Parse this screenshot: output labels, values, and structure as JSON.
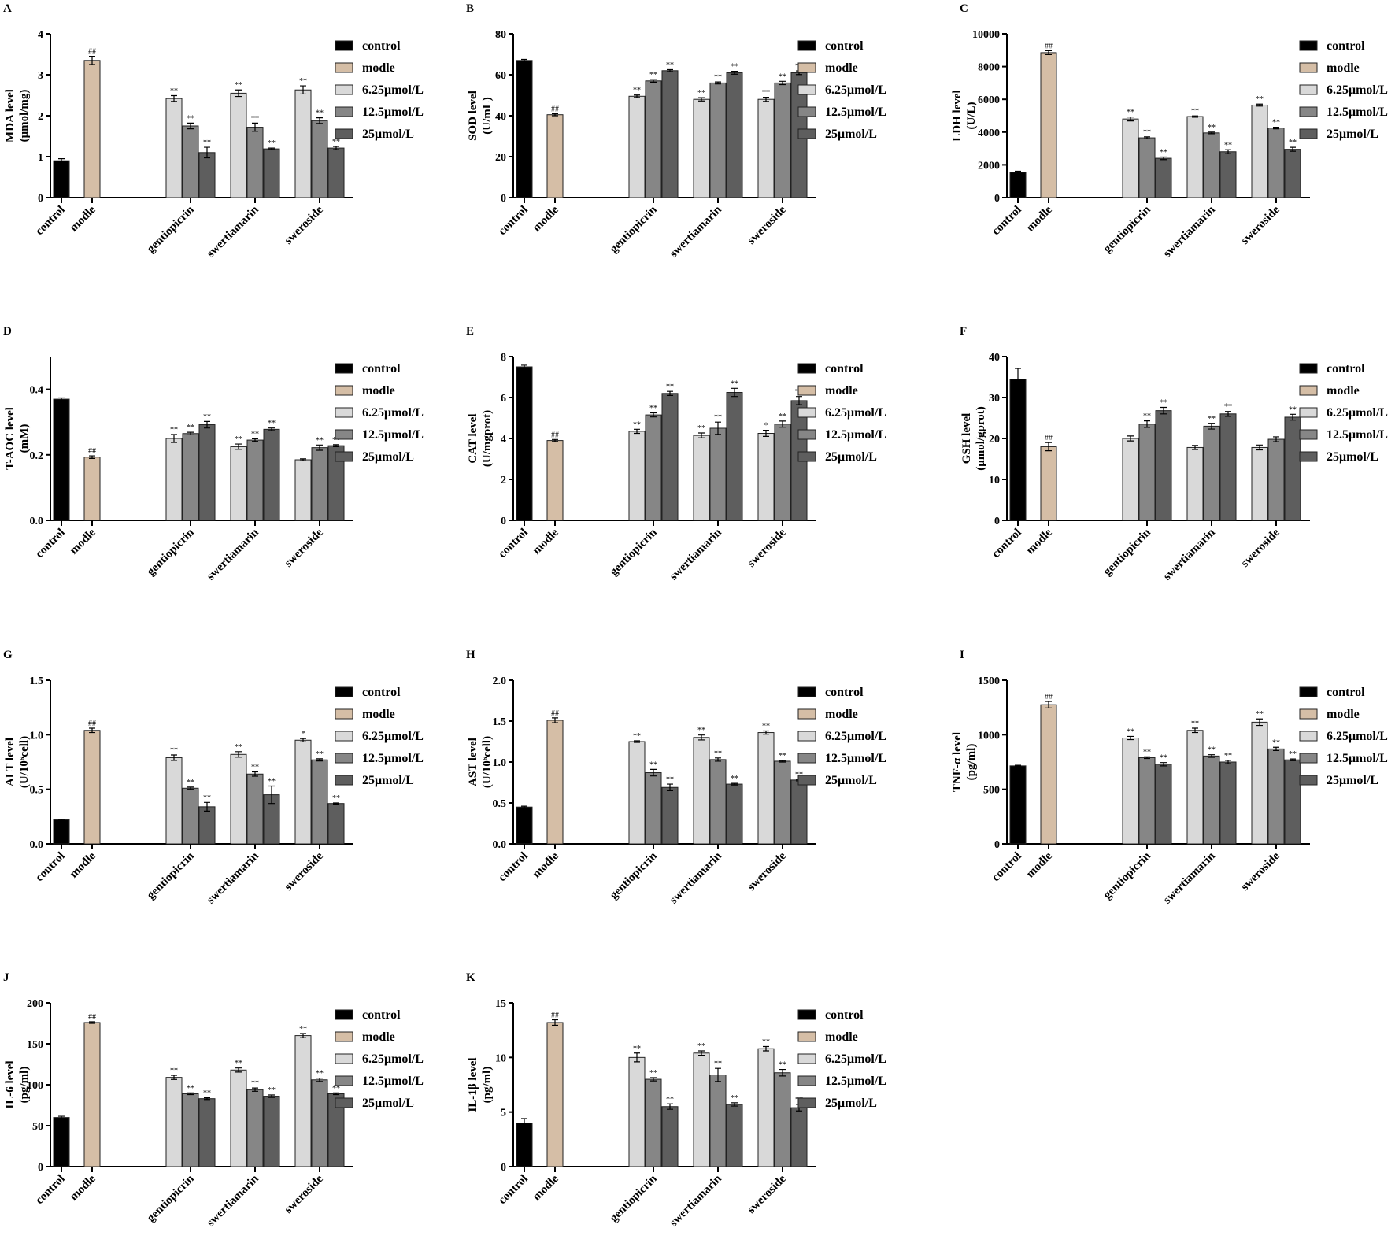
{
  "chart_data": {
    "type": "bar",
    "categories": [
      "control",
      "modle",
      "gentiopicrin",
      "swertiamarin",
      "sweroside"
    ],
    "legend": [
      "control",
      "modle",
      "6.25μmol/L",
      "12.5μmol/L",
      "25μmol/L"
    ],
    "colors": {
      "control": "#000000",
      "modle": "#d5bea6",
      "6.25μmol/L": "#d9d9d9",
      "12.5μmol/L": "#868686",
      "25μmol/L": "#5e5e5e"
    },
    "series_order": [
      "control",
      "modle",
      "gentiopicrin 6.25",
      "gentiopicrin 12.5",
      "gentiopicrin 25",
      "swertiamarin 6.25",
      "swertiamarin 12.5",
      "swertiamarin 25",
      "sweroside 6.25",
      "sweroside 12.5",
      "sweroside 25"
    ],
    "panels": [
      {
        "letter": "A",
        "ylabel": [
          "MDA level",
          "(μmol/mg)"
        ],
        "ylim": [
          0,
          4
        ],
        "yticks": [
          "0",
          "1",
          "2",
          "3",
          "4"
        ],
        "values": [
          0.9,
          3.35,
          2.42,
          1.75,
          1.1,
          2.55,
          1.72,
          1.19,
          2.63,
          1.88,
          1.21
        ],
        "errors": [
          0.05,
          0.1,
          0.07,
          0.07,
          0.13,
          0.08,
          0.1,
          0.02,
          0.1,
          0.07,
          0.04
        ],
        "marks": [
          "",
          "##",
          "**",
          "**",
          "**",
          "**",
          "**",
          "**",
          "**",
          "**",
          "**"
        ]
      },
      {
        "letter": "B",
        "ylabel": [
          "SOD level",
          "(U/mL)"
        ],
        "ylim": [
          0,
          80
        ],
        "yticks": [
          "0",
          "20",
          "40",
          "60",
          "80"
        ],
        "values": [
          67,
          40.5,
          49.5,
          57,
          62,
          48,
          56,
          61,
          48,
          56,
          61
        ],
        "errors": [
          0.5,
          0.5,
          0.6,
          0.6,
          0.5,
          0.8,
          0.5,
          0.7,
          1,
          0.8,
          0.9
        ],
        "marks": [
          "",
          "##",
          "**",
          "**",
          "**",
          "**",
          "**",
          "**",
          "**",
          "**",
          "**"
        ]
      },
      {
        "letter": "C",
        "ylabel": [
          "LDH level",
          "(U/L)"
        ],
        "ylim": [
          0,
          10000
        ],
        "yticks": [
          "0",
          "2000",
          "4000",
          "6000",
          "8000",
          "10000"
        ],
        "values": [
          1550,
          8850,
          4800,
          3650,
          2400,
          4950,
          3950,
          2800,
          5650,
          4250,
          2950
        ],
        "errors": [
          60,
          120,
          120,
          60,
          80,
          40,
          50,
          120,
          60,
          50,
          120
        ],
        "marks": [
          "",
          "##",
          "**",
          "**",
          "**",
          "**",
          "**",
          "**",
          "**",
          "**",
          "**"
        ]
      },
      {
        "letter": "D",
        "ylabel": [
          "T-AOC level",
          "(mM)"
        ],
        "ylim": [
          0,
          0.5
        ],
        "yticks": [
          "0.0",
          "0.2",
          "0.4"
        ],
        "ytickvals": [
          0,
          0.2,
          0.4
        ],
        "values": [
          0.37,
          0.193,
          0.25,
          0.265,
          0.292,
          0.225,
          0.245,
          0.278,
          0.185,
          0.222,
          0.228
        ],
        "errors": [
          0.004,
          0.004,
          0.012,
          0.004,
          0.01,
          0.008,
          0.004,
          0.004,
          0.003,
          0.008,
          0.003
        ],
        "marks": [
          "",
          "##",
          "**",
          "**",
          "**",
          "**",
          "**",
          "**",
          "",
          "**",
          "**"
        ]
      },
      {
        "letter": "E",
        "ylabel": [
          "CAT level",
          "(U/mgprot)"
        ],
        "ylim": [
          0,
          8
        ],
        "yticks": [
          "0",
          "2",
          "4",
          "6",
          "8"
        ],
        "values": [
          7.5,
          3.9,
          4.35,
          5.15,
          6.2,
          4.15,
          4.5,
          6.25,
          4.25,
          4.7,
          5.85
        ],
        "errors": [
          0.08,
          0.05,
          0.1,
          0.1,
          0.1,
          0.12,
          0.3,
          0.2,
          0.15,
          0.15,
          0.2
        ],
        "marks": [
          "",
          "##",
          "**",
          "**",
          "**",
          "**",
          "**",
          "**",
          "*",
          "**",
          "**"
        ]
      },
      {
        "letter": "F",
        "ylabel": [
          "GSH level",
          "(μmol/gprot)"
        ],
        "ylim": [
          0,
          40
        ],
        "yticks": [
          "0",
          "10",
          "20",
          "30",
          "40"
        ],
        "values": [
          34.5,
          18,
          20,
          23.5,
          26.8,
          17.8,
          23,
          26,
          17.8,
          19.8,
          25.2
        ],
        "errors": [
          2.6,
          1,
          0.6,
          0.8,
          0.8,
          0.5,
          0.7,
          0.6,
          0.6,
          0.6,
          0.7
        ],
        "marks": [
          "",
          "##",
          "",
          "**",
          "**",
          "",
          "**",
          "**",
          "",
          "",
          "**"
        ]
      },
      {
        "letter": "G",
        "ylabel": [
          "ALT level",
          "(U/10⁶cell)"
        ],
        "ylim": [
          0,
          1.5
        ],
        "yticks": [
          "0.0",
          "0.5",
          "1.0",
          "1.5"
        ],
        "ytickvals": [
          0,
          0.5,
          1,
          1.5
        ],
        "values": [
          0.22,
          1.04,
          0.79,
          0.51,
          0.34,
          0.82,
          0.64,
          0.45,
          0.95,
          0.77,
          0.37
        ],
        "errors": [
          0.005,
          0.02,
          0.025,
          0.01,
          0.04,
          0.025,
          0.02,
          0.08,
          0.015,
          0.01,
          0.005
        ],
        "marks": [
          "",
          "##",
          "**",
          "**",
          "**",
          "**",
          "**",
          "**",
          "*",
          "**",
          "**"
        ]
      },
      {
        "letter": "H",
        "ylabel": [
          "AST level",
          "(U/10⁶cell)"
        ],
        "ylim": [
          0,
          2
        ],
        "yticks": [
          "0.0",
          "0.5",
          "1.0",
          "1.5",
          "2.0"
        ],
        "ytickvals": [
          0,
          0.5,
          1,
          1.5,
          2
        ],
        "values": [
          0.45,
          1.51,
          1.25,
          0.87,
          0.69,
          1.3,
          1.03,
          0.73,
          1.36,
          1.01,
          0.78
        ],
        "errors": [
          0.01,
          0.03,
          0.01,
          0.04,
          0.04,
          0.03,
          0.02,
          0.01,
          0.02,
          0.01,
          0.01
        ],
        "marks": [
          "",
          "##",
          "**",
          "**",
          "**",
          "**",
          "**",
          "**",
          "**",
          "**",
          "**"
        ]
      },
      {
        "letter": "I",
        "ylabel": [
          "TNF-α level",
          "(pg/ml)"
        ],
        "ylim": [
          0,
          1500
        ],
        "yticks": [
          "0",
          "500",
          "1000",
          "1500"
        ],
        "ytickvals": [
          0,
          500,
          1000,
          1500
        ],
        "values": [
          715,
          1275,
          970,
          790,
          730,
          1040,
          805,
          750,
          1115,
          870,
          770
        ],
        "errors": [
          5,
          30,
          15,
          8,
          15,
          20,
          12,
          15,
          30,
          15,
          8
        ],
        "marks": [
          "",
          "##",
          "**",
          "**",
          "**",
          "**",
          "**",
          "**",
          "**",
          "**",
          "**"
        ]
      },
      {
        "letter": "J",
        "ylabel": [
          "IL-6 level",
          "(pg/ml)"
        ],
        "ylim": [
          0,
          200
        ],
        "yticks": [
          "0",
          "50",
          "100",
          "150",
          "200"
        ],
        "values": [
          60,
          176,
          109,
          89,
          83,
          118,
          94,
          86,
          160,
          106,
          89
        ],
        "errors": [
          1.5,
          1,
          2.5,
          1,
          1,
          2.5,
          2,
          1.5,
          2.5,
          2,
          1
        ],
        "marks": [
          "",
          "##",
          "**",
          "**",
          "**",
          "**",
          "**",
          "**",
          "**",
          "**",
          "**"
        ]
      },
      {
        "letter": "K",
        "ylabel": [
          "IL-1β level",
          "(pg/ml)"
        ],
        "ylim": [
          0,
          15
        ],
        "yticks": [
          "0",
          "5",
          "10",
          "15"
        ],
        "ytickvals": [
          0,
          5,
          10,
          15
        ],
        "values": [
          4,
          13.2,
          10,
          8,
          5.5,
          10.4,
          8.4,
          5.7,
          10.8,
          8.6,
          5.4
        ],
        "errors": [
          0.4,
          0.25,
          0.4,
          0.15,
          0.25,
          0.2,
          0.6,
          0.15,
          0.2,
          0.3,
          0.3
        ],
        "marks": [
          "",
          "##",
          "**",
          "**",
          "**",
          "**",
          "**",
          "**",
          "**",
          "**",
          "**"
        ]
      }
    ]
  }
}
